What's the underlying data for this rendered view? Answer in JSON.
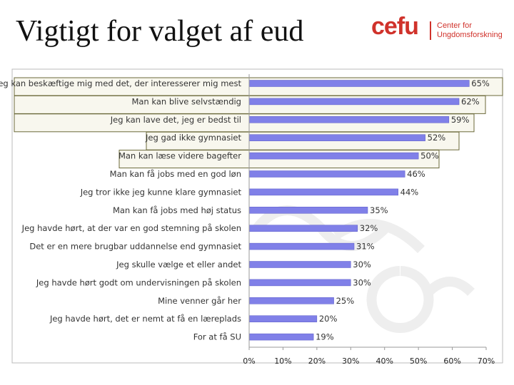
{
  "slide": {
    "title": "Vigtigt for valget af eud"
  },
  "logo": {
    "wordmark": "cefu",
    "tagline_line1": "Center for",
    "tagline_line2": "Ungdomsforskning",
    "color": "#d0322b"
  },
  "chart_data": {
    "type": "bar",
    "orientation": "horizontal",
    "categories": [
      "Jeg kan beskæftige mig med det, der interesserer mig mest",
      "Man kan blive selvstændig",
      "Jeg kan lave det, jeg er bedst til",
      "Jeg gad ikke gymnasiet",
      "Man kan læse videre bagefter",
      "Man kan få jobs med en god løn",
      "Jeg tror ikke jeg kunne klare gymnasiet",
      "Man kan få jobs med høj status",
      "Jeg havde hørt, at der var en god stemning på skolen",
      "Det er en mere brugbar uddannelse end gymnasiet",
      "Jeg skulle vælge et eller andet",
      "Jeg havde hørt godt om undervisningen på skolen",
      "Mine venner går her",
      "Jeg havde hørt, det er nemt at få en læreplads",
      "For at få SU"
    ],
    "values": [
      65,
      62,
      59,
      52,
      50,
      46,
      44,
      35,
      32,
      31,
      30,
      30,
      25,
      20,
      19
    ],
    "value_labels": [
      "65%",
      "62%",
      "59%",
      "52%",
      "50%",
      "46%",
      "44%",
      "35%",
      "32%",
      "31%",
      "30%",
      "30%",
      "25%",
      "20%",
      "19%"
    ],
    "xlim": [
      0,
      70
    ],
    "ticks": [
      "0%",
      "10%",
      "20%",
      "30%",
      "40%",
      "50%",
      "60%",
      "70%"
    ],
    "highlighted_categories": [
      0,
      1,
      2,
      3,
      4
    ],
    "bar_color": "#8080e8",
    "highlight_color": "#ece9cf",
    "grid": false,
    "legend": "none"
  }
}
